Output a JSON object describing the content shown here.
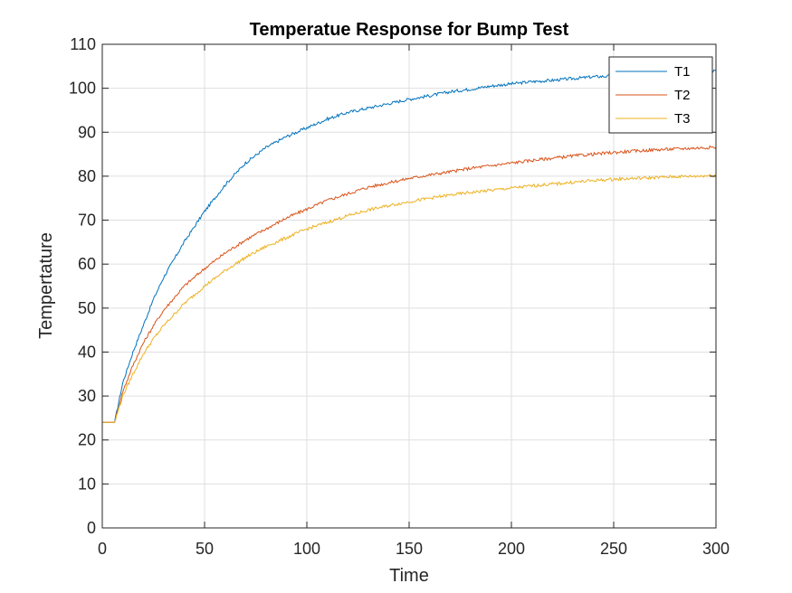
{
  "chart_data": {
    "type": "line",
    "title": "Temperatue Response for Bump Test",
    "xlabel": "Time",
    "ylabel": "Tempertature",
    "xlim": [
      0,
      300
    ],
    "ylim": [
      0,
      110
    ],
    "xticks": [
      0,
      50,
      100,
      150,
      200,
      250,
      300
    ],
    "yticks": [
      0,
      10,
      20,
      30,
      40,
      50,
      60,
      70,
      80,
      90,
      100,
      110
    ],
    "grid": true,
    "legend_position": "top-right",
    "series": [
      {
        "name": "T1",
        "color": "#0072BD",
        "x": [
          0,
          6,
          10,
          15,
          20,
          25,
          30,
          40,
          50,
          60,
          70,
          80,
          90,
          100,
          110,
          120,
          130,
          140,
          150,
          160,
          170,
          180,
          190,
          200,
          210,
          220,
          230,
          240,
          250,
          260,
          270,
          280,
          290,
          300
        ],
        "y": [
          24,
          24,
          33,
          40,
          46,
          52,
          57,
          65,
          72,
          78,
          83,
          86.5,
          89,
          91,
          93,
          94.5,
          95.5,
          96.5,
          97.5,
          98.3,
          99.2,
          99.8,
          100.5,
          101,
          101.5,
          101.8,
          102.2,
          102.6,
          102.8,
          103.1,
          103.3,
          103.6,
          103.8,
          104
        ]
      },
      {
        "name": "T2",
        "color": "#D95319",
        "x": [
          0,
          6,
          10,
          15,
          20,
          25,
          30,
          40,
          50,
          60,
          70,
          80,
          90,
          100,
          110,
          120,
          130,
          140,
          150,
          160,
          170,
          180,
          190,
          200,
          210,
          220,
          230,
          240,
          250,
          260,
          270,
          280,
          290,
          300
        ],
        "y": [
          24,
          24,
          31,
          37,
          42,
          46,
          49.5,
          55,
          59,
          62.5,
          65.5,
          68,
          70.5,
          72.5,
          74.5,
          76,
          77.5,
          78.5,
          79.5,
          80.3,
          81,
          81.8,
          82.4,
          83,
          83.6,
          84.1,
          84.6,
          85,
          85.4,
          85.7,
          86,
          86.2,
          86.4,
          86.6
        ]
      },
      {
        "name": "T3",
        "color": "#EDB120",
        "x": [
          0,
          6,
          10,
          15,
          20,
          25,
          30,
          40,
          50,
          60,
          70,
          80,
          90,
          100,
          110,
          120,
          130,
          140,
          150,
          160,
          170,
          180,
          190,
          200,
          210,
          220,
          230,
          240,
          250,
          260,
          270,
          280,
          290,
          300
        ],
        "y": [
          24,
          24,
          30,
          35,
          39.5,
          43,
          46,
          51,
          55,
          58.5,
          61.5,
          64,
          66,
          68,
          69.5,
          71,
          72.3,
          73.3,
          74.2,
          75,
          75.7,
          76.3,
          76.8,
          77.3,
          77.8,
          78.2,
          78.6,
          79,
          79.3,
          79.5,
          79.7,
          79.9,
          80,
          80.2
        ]
      }
    ]
  }
}
